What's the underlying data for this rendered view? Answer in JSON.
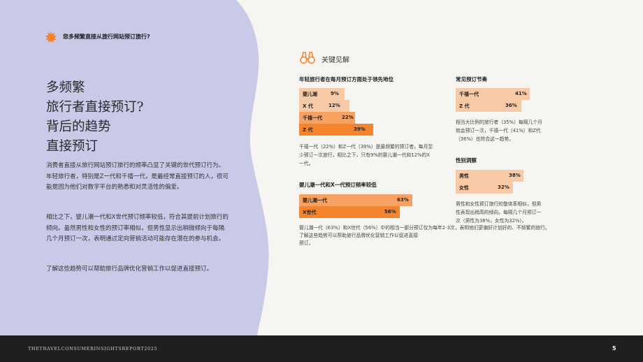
{
  "header": {
    "question": "您多频繁直接从旅行网站预订旅行?"
  },
  "title_lines": [
    "多频繁",
    "旅行者直接预订?",
    "背后的趋势",
    "直接预订"
  ],
  "paragraphs": [
    "消费者直接从旅行网站预订旅行的频率凸显了关键的世代预订行为。年轻旅行者，特别是Z一代和千禧一代，是最经常直接预订的人，很可能是因为他们对数字平台的熟悉和对灵活性的偏爱。",
    "相比之下，婴儿潮一代和X世代预订频率较低，符合其提前计划旅行的倾向。虽然男性和女性的预订率相似，但男性显示出稍微倾向于每隔几个月预订一次，表明通过定向营销活动可能存在潜在的参与机会。",
    "了解这些趋势可以帮助旅行品牌优化营销工作以促进直接预订。"
  ],
  "key_findings_label": "关键见解",
  "sections": {
    "young": {
      "title": "年轻旅行者在每月预订方面处于领先地位",
      "bars": [
        {
          "label": "婴儿潮",
          "value": "9%",
          "pct": 9
        },
        {
          "label": "X 代",
          "value": "12%",
          "pct": 12
        },
        {
          "label": "千禧一代",
          "value": "22%",
          "pct": 22
        },
        {
          "label": "Z 代",
          "value": "39%",
          "pct": 39
        }
      ],
      "note": "千禧一代（22%）和Z一代（39%）是最频繁的预订者，每月至少预订一次旅行，相比之下，只有9%的婴儿潮一代和12%的X一代。"
    },
    "older": {
      "title": "婴儿潮一代和X一代预订频率较低",
      "bars": [
        {
          "label": "婴儿潮一代",
          "value": "63%",
          "pct": 63
        },
        {
          "label": "X世代",
          "value": "56%",
          "pct": 56
        }
      ],
      "note_line1": "婴儿潮一代（63%）和X世代（56%）中的相当一部分预订仅为每年2-3次，表明他们更偏好计划好的、不频繁的旅行。",
      "note_line2": "了解这些趋势可以帮助旅行品牌优化营销工作以促进直接预订。"
    },
    "rhythm": {
      "title": "常见预订节奏",
      "bars": [
        {
          "label": "千禧一代",
          "value": "41%",
          "pct": 41
        },
        {
          "label": "Z 代",
          "value": "36%",
          "pct": 36
        }
      ],
      "note": "相当大比例的旅行者（35%）每隔几个月就会预订一次，千禧一代（41%）和Z代（36%）也符合这一趋势。"
    },
    "gender": {
      "title": "性别洞察",
      "bars": [
        {
          "label": "男性",
          "value": "38%",
          "pct": 38
        },
        {
          "label": "女性",
          "value": "32%",
          "pct": 32
        }
      ],
      "note": "男性和女性预订旅行的整体率相似，但男性表现出稍高的倾向，每隔几个月预订一次（男性为38%，女性为32%）。"
    }
  },
  "footer": {
    "report": "THETRAVELCONSUMERINSIGHTSREPORT2025",
    "page": "5"
  },
  "colors": {
    "lavender": "#c9c9e8",
    "bar_light": "#f8c9a5",
    "bar_mid": "#f7a263",
    "bar_dark": "#f5842d",
    "footer_bg": "#1f1f1f",
    "accent": "#f5842d"
  }
}
